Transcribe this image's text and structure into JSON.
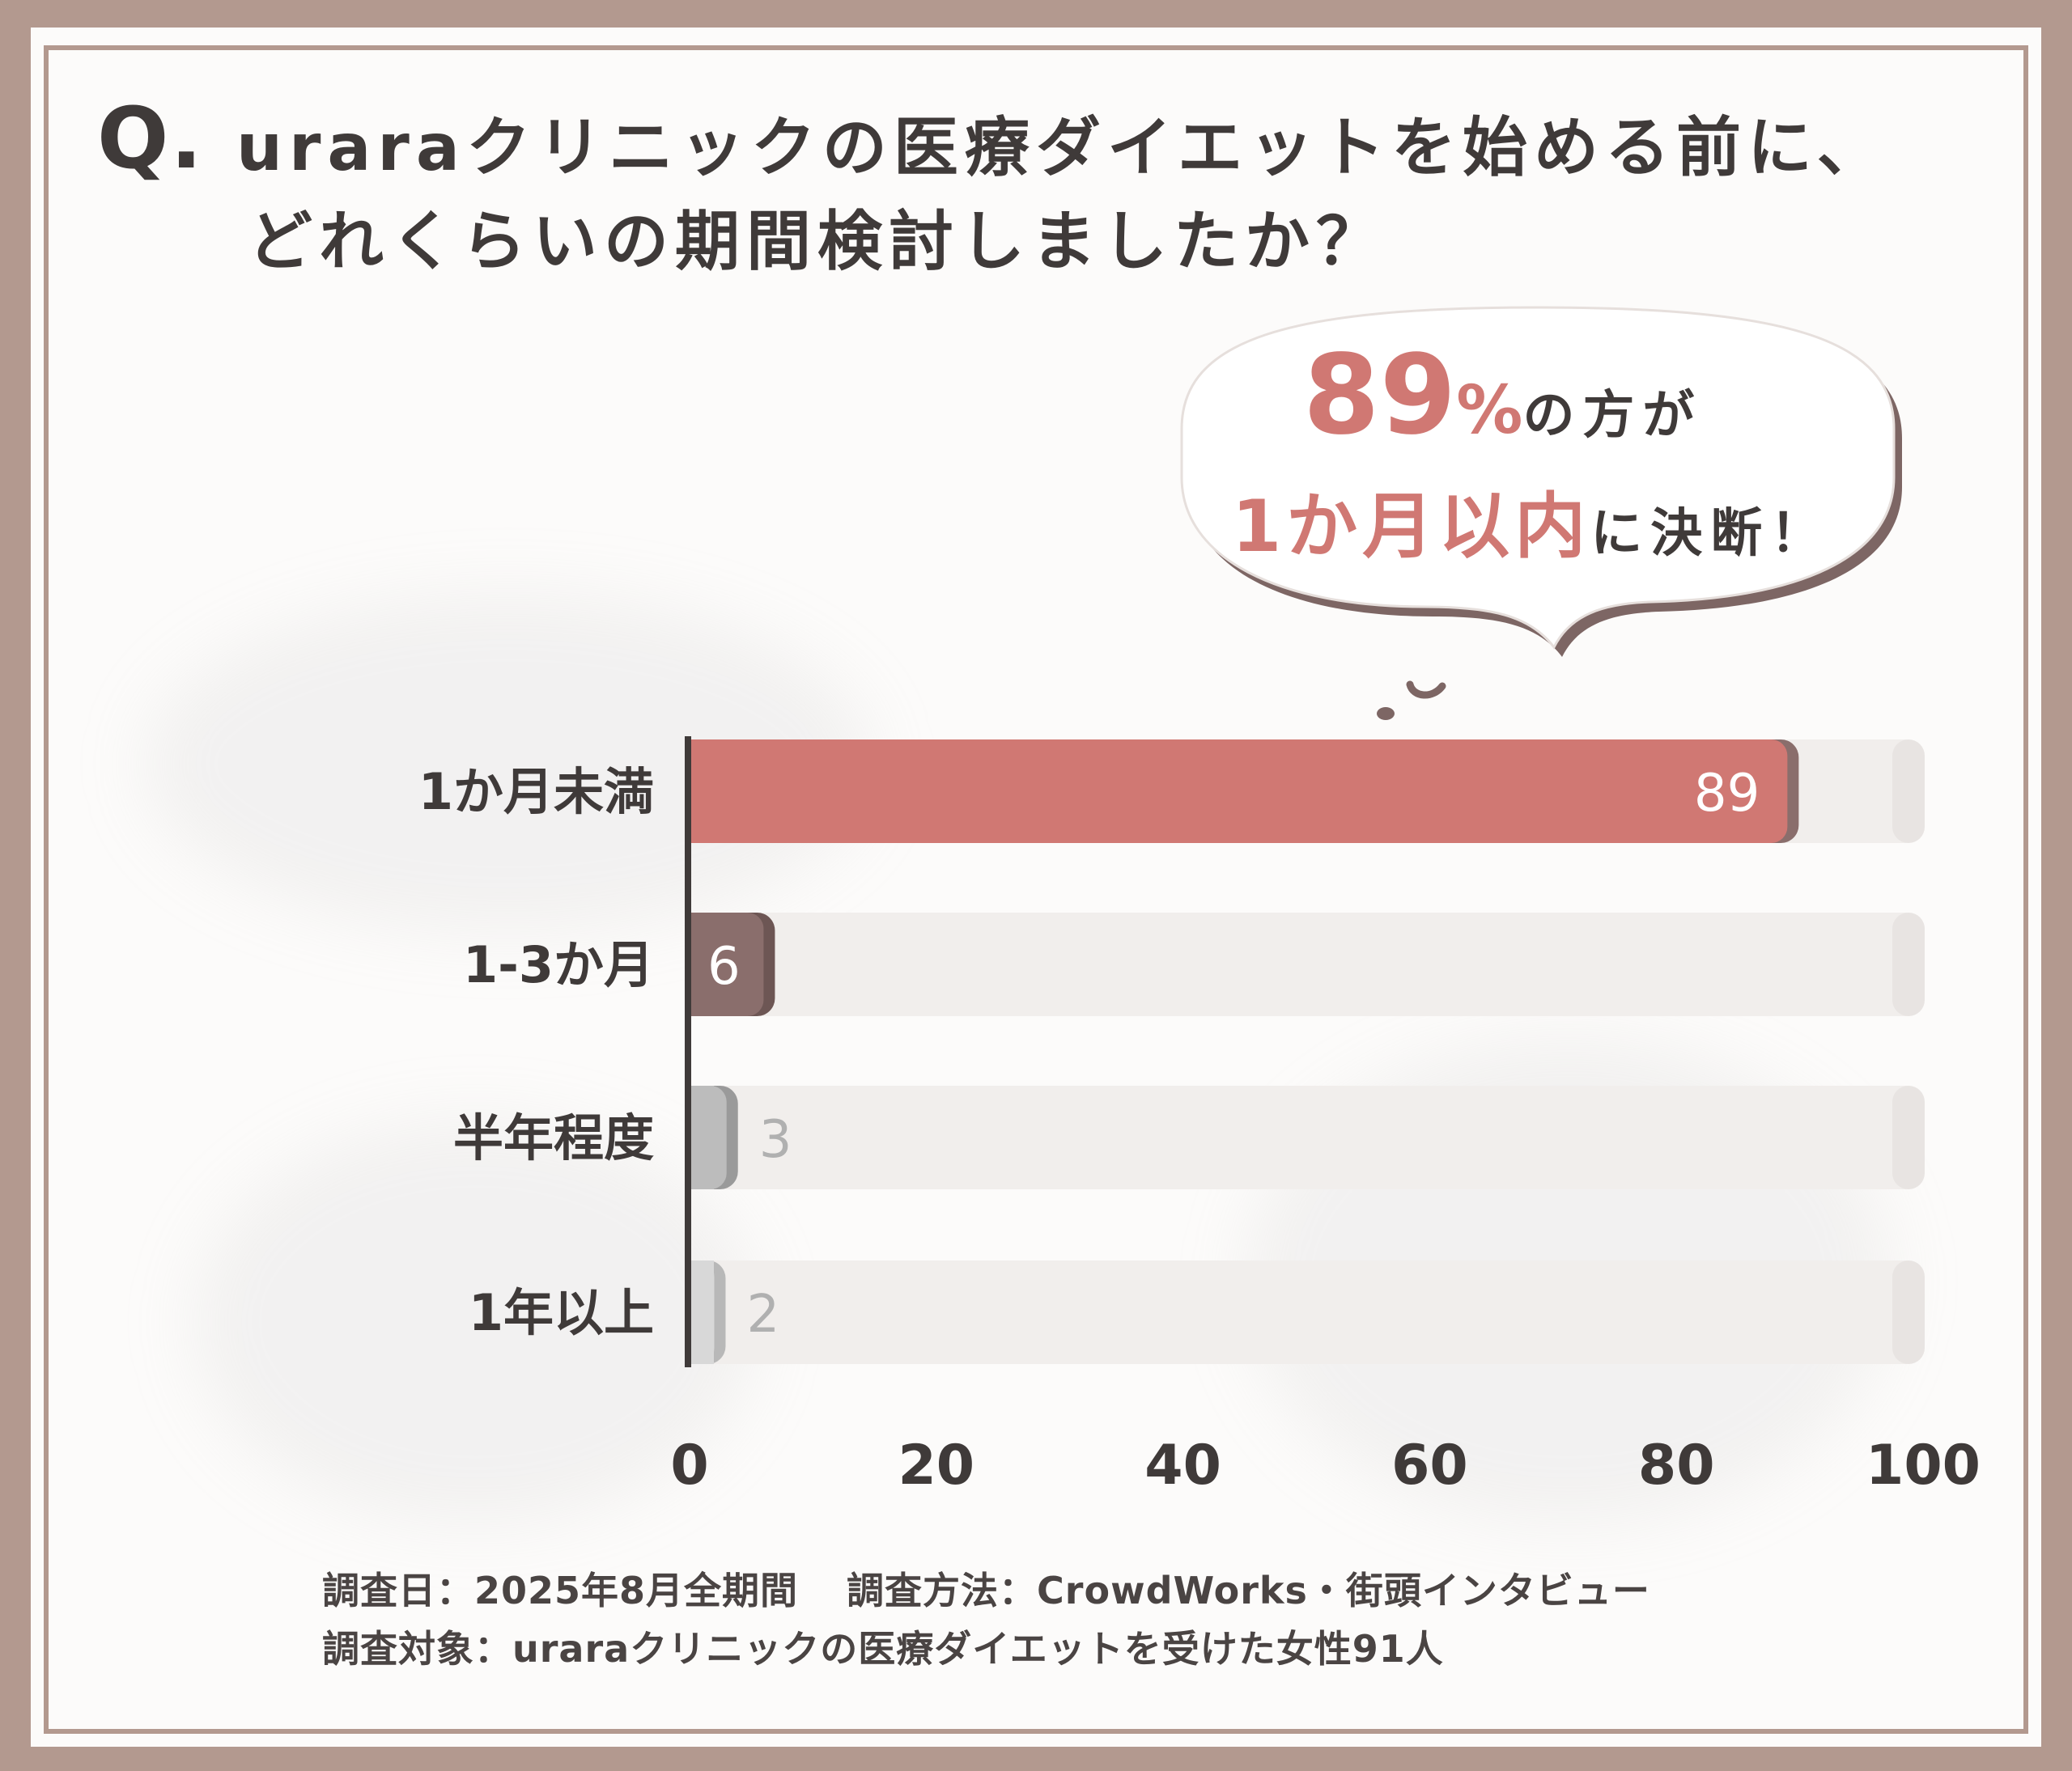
{
  "header": {
    "q_mark": "Q.",
    "title_line1": "uraraクリニックの医療ダイエットを始める前に、",
    "title_line2": "どれくらいの期間検討しましたか？"
  },
  "callout": {
    "percent_value": "89",
    "percent_sign": "%",
    "line1_rest": "の方が",
    "line2_highlight": "1か月以内",
    "line2_rest": "に決断！"
  },
  "chart_data": {
    "type": "bar",
    "orientation": "horizontal",
    "categories": [
      "1か月未満",
      "1-3か月",
      "半年程度",
      "1年以上"
    ],
    "values": [
      89,
      6,
      3,
      2
    ],
    "value_labels": [
      "89",
      "6",
      "3",
      "2"
    ],
    "xlim": [
      0,
      100
    ],
    "x_ticks": [
      "0",
      "20",
      "40",
      "60",
      "80",
      "100"
    ],
    "colors": [
      "#d07873",
      "#8a6e6c",
      "#bcbcbc",
      "#d8d8d8"
    ],
    "track_color": "#f1eeec"
  },
  "footer": {
    "date": "調査日：2025年8月全期間",
    "method": "調査方法：CrowdWorks・街頭インタビュー",
    "target": "調査対象：uraraクリニックの医療ダイエットを受けた女性91人"
  }
}
